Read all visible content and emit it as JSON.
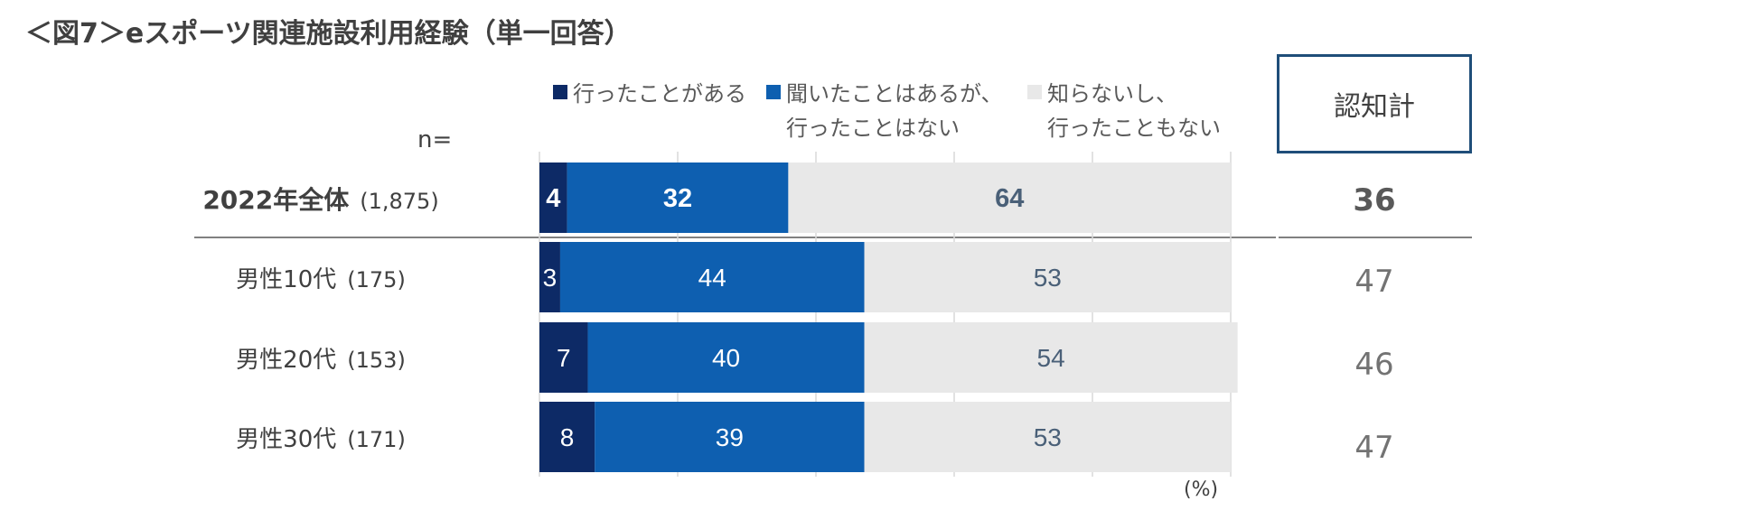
{
  "title": "＜図7＞eスポーツ関連施設利用経験（単一回答）",
  "n_label": "n=",
  "unit_label": "(%)",
  "ninchi_header": "認知計",
  "legend": [
    {
      "line1": "行ったことがある",
      "line2": "",
      "color": "#0d2a66"
    },
    {
      "line1": "聞いたことはあるが、",
      "line2": "行ったことはない",
      "color": "#0e5fb0"
    },
    {
      "line1": "知らないし、",
      "line2": "行ったこともない",
      "color": "#e8e8e8"
    }
  ],
  "chart_data": {
    "type": "bar",
    "orientation": "horizontal-stacked-100",
    "categories": [
      "2022年全体",
      "男性10代",
      "男性20代",
      "男性30代"
    ],
    "n": [
      "(1,875)",
      "(175)",
      "(153)",
      "(171)"
    ],
    "series": [
      {
        "name": "行ったことがある",
        "values": [
          4,
          3,
          7,
          8
        ]
      },
      {
        "name": "聞いたことはあるが、行ったことはない",
        "values": [
          32,
          44,
          40,
          39
        ]
      },
      {
        "name": "知らないし、行ったこともない",
        "values": [
          64,
          53,
          54,
          53
        ]
      }
    ],
    "ninchi": [
      36,
      47,
      46,
      47
    ],
    "xlim": [
      0,
      100
    ],
    "grid": true
  },
  "colors": {
    "series": [
      "#0d2a66",
      "#0e5fb0",
      "#e8e8e8"
    ],
    "label_on_dark": "#ffffff",
    "label_on_light": "#4a6078",
    "grid": "#d9d9d9"
  }
}
